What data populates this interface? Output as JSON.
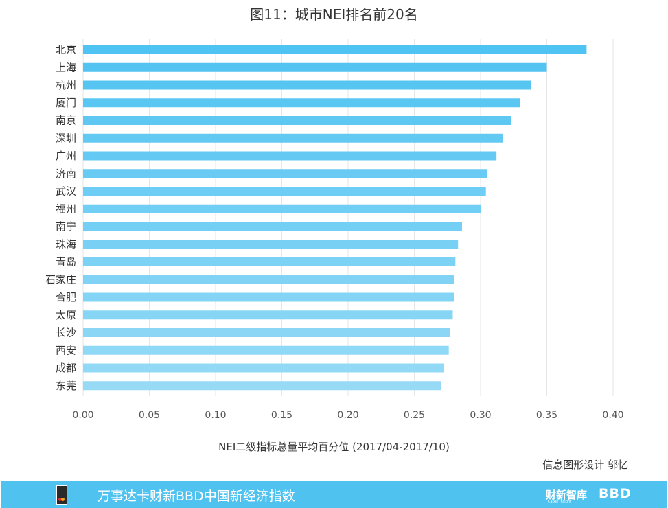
{
  "chart_data": {
    "type": "bar",
    "orientation": "horizontal",
    "title": "图11：城市NEI排名前20名",
    "xlabel": "NEI二级指标总量平均百分位 (2017/04-2017/10)",
    "ylabel": "",
    "xlim": [
      0,
      0.4
    ],
    "x_ticks": [
      "0.00",
      "0.05",
      "0.10",
      "0.15",
      "0.20",
      "0.25",
      "0.30",
      "0.35",
      "0.40"
    ],
    "grid": "vertical",
    "categories": [
      "北京",
      "上海",
      "杭州",
      "厦门",
      "南京",
      "深圳",
      "广州",
      "济南",
      "武汉",
      "福州",
      "南宁",
      "珠海",
      "青岛",
      "石家庄",
      "合肥",
      "太原",
      "长沙",
      "西安",
      "成都",
      "东莞"
    ],
    "values": [
      0.38,
      0.35,
      0.338,
      0.33,
      0.323,
      0.317,
      0.312,
      0.305,
      0.304,
      0.3,
      0.286,
      0.283,
      0.281,
      0.28,
      0.28,
      0.279,
      0.277,
      0.276,
      0.272,
      0.27
    ],
    "colors": {
      "bar_top": "#4fc3f2",
      "bar_bottom": "#96daf6",
      "grid": "#e6e6e6"
    }
  },
  "credit": "信息图形设计 邬忆",
  "footer": {
    "text": "万事达卡财新BBD中国新经济指数",
    "brand": "财新智库",
    "brand_sub": "Caixin Insight",
    "bbd": "BBD",
    "logo_icon": "mastercard-card-icon",
    "background": "#4fc2f0"
  }
}
